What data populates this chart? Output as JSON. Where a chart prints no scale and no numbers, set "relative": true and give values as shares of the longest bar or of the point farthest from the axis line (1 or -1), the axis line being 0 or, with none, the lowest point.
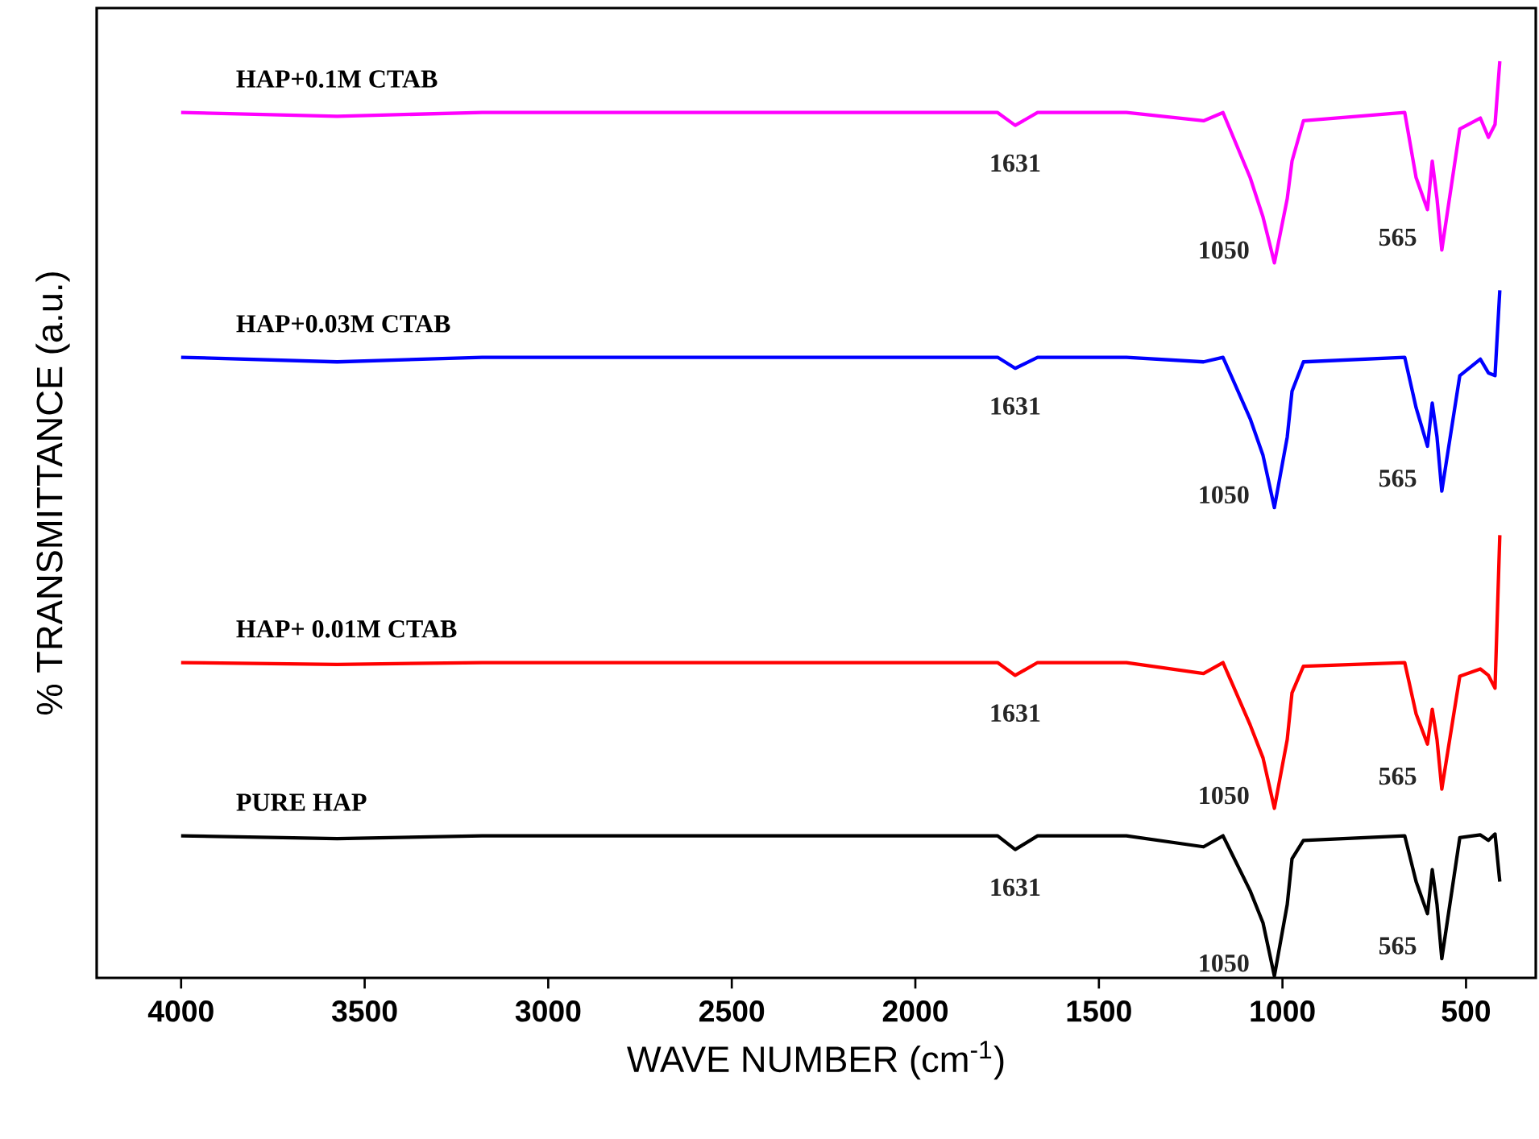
{
  "chart_data": {
    "type": "line",
    "relative": true,
    "xlabel": "WAVE NUMBER (cm$^{-1}$)",
    "ylabel": "% TRANSMITTANCE (a.u.)",
    "xlim": [
      4230,
      310
    ],
    "xticks": [
      4000,
      3500,
      3000,
      2500,
      2000,
      1500,
      1000,
      500
    ],
    "tick_labels": "x",
    "legend": false,
    "grid": false,
    "marker": "none",
    "line_style": "solid",
    "x": [
      4000,
      3575,
      3180,
      2741,
      2303,
      1864,
      1776,
      1728,
      1667,
      1425,
      1215,
      1162,
      1088,
      1053,
      1022,
      987,
      974,
      943,
      667,
      636,
      605,
      592,
      579,
      566,
      517,
      461,
      439,
      421,
      408
    ],
    "series": [
      {
        "name": "HAP+0.1M CTAB",
        "color": "#ff00ff",
        "values": [
          0.944,
          0.94,
          0.944,
          0.944,
          0.944,
          0.944,
          0.944,
          0.93,
          0.944,
          0.944,
          0.935,
          0.944,
          0.873,
          0.83,
          0.78,
          0.85,
          0.891,
          0.935,
          0.944,
          0.873,
          0.838,
          0.891,
          0.85,
          0.794,
          0.926,
          0.938,
          0.917,
          0.931,
          1.0
        ]
      },
      {
        "name": "HAP+0.03M  CTAB",
        "color": "#0000ff",
        "values": [
          0.677,
          0.672,
          0.677,
          0.677,
          0.677,
          0.677,
          0.677,
          0.665,
          0.677,
          0.677,
          0.672,
          0.677,
          0.61,
          0.57,
          0.513,
          0.59,
          0.64,
          0.672,
          0.677,
          0.622,
          0.58,
          0.627,
          0.59,
          0.531,
          0.657,
          0.675,
          0.66,
          0.657,
          0.75
        ]
      },
      {
        "name": "HAP+ 0.01M CTAB",
        "color": "#ff0000",
        "values": [
          0.344,
          0.342,
          0.344,
          0.344,
          0.344,
          0.344,
          0.344,
          0.33,
          0.344,
          0.344,
          0.332,
          0.344,
          0.276,
          0.24,
          0.185,
          0.26,
          0.311,
          0.34,
          0.344,
          0.288,
          0.255,
          0.293,
          0.26,
          0.206,
          0.329,
          0.337,
          0.33,
          0.316,
          0.483
        ]
      },
      {
        "name": "PURE HAP",
        "color": "#000000",
        "values": [
          0.155,
          0.152,
          0.155,
          0.155,
          0.155,
          0.155,
          0.155,
          0.14,
          0.155,
          0.155,
          0.143,
          0.155,
          0.095,
          0.06,
          0.002,
          0.08,
          0.13,
          0.15,
          0.155,
          0.105,
          0.07,
          0.118,
          0.08,
          0.021,
          0.153,
          0.156,
          0.15,
          0.157,
          0.105
        ]
      }
    ],
    "annotations": [
      {
        "text": "1631",
        "x": 1728,
        "y": 0.93
      },
      {
        "text": "1050",
        "x": 1022,
        "y": 0.78
      },
      {
        "text": "565",
        "x": 566,
        "y": 0.794
      },
      {
        "text": "1631",
        "x": 1728,
        "y": 0.665
      },
      {
        "text": "1050",
        "x": 1022,
        "y": 0.513
      },
      {
        "text": "565",
        "x": 566,
        "y": 0.531
      },
      {
        "text": "1631",
        "x": 1728,
        "y": 0.33
      },
      {
        "text": "1050",
        "x": 1022,
        "y": 0.185
      },
      {
        "text": "565",
        "x": 566,
        "y": 0.206
      },
      {
        "text": "1631",
        "x": 1728,
        "y": 0.14
      },
      {
        "text": "1050",
        "x": 1022,
        "y": 0.002
      },
      {
        "text": "565",
        "x": 566,
        "y": 0.021
      }
    ]
  }
}
